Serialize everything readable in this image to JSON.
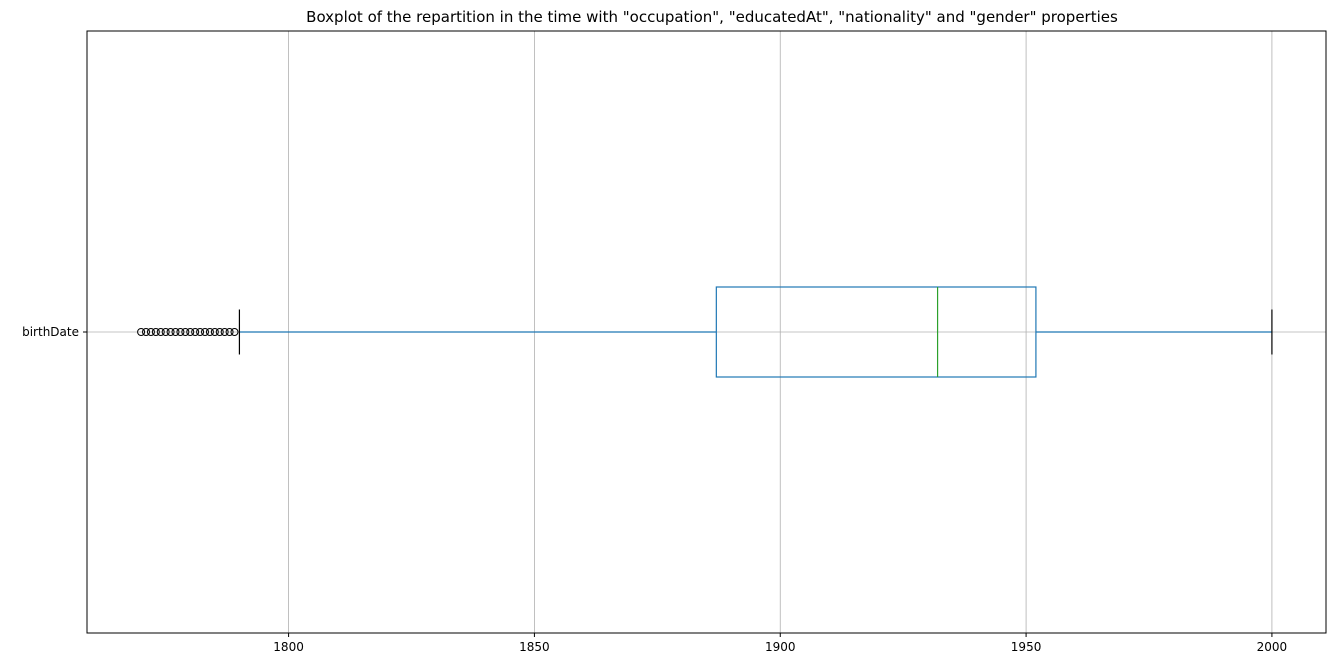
{
  "chart_data": {
    "type": "boxplot",
    "title": "Boxplot of the repartition in the time with \"occupation\", \"educatedAt\", \"nationality\" and \"gender\" properties",
    "orientation": "horizontal",
    "xlim": [
      1759,
      2011
    ],
    "x_ticks": [
      1800,
      1850,
      1900,
      1950,
      2000
    ],
    "grid": true,
    "series": [
      {
        "name": "birthDate",
        "whisker_low": 1790,
        "q1": 1887,
        "median": 1932,
        "q3": 1952,
        "whisker_high": 2000,
        "outliers": [
          1770,
          1771,
          1772,
          1773,
          1774,
          1775,
          1776,
          1777,
          1778,
          1779,
          1780,
          1781,
          1782,
          1783,
          1784,
          1785,
          1786,
          1787,
          1788,
          1789
        ]
      }
    ],
    "colors": {
      "box": "#1f77b4",
      "median": "#2ca02c",
      "caps": "#000000",
      "grid": "#b0b0b0"
    }
  }
}
